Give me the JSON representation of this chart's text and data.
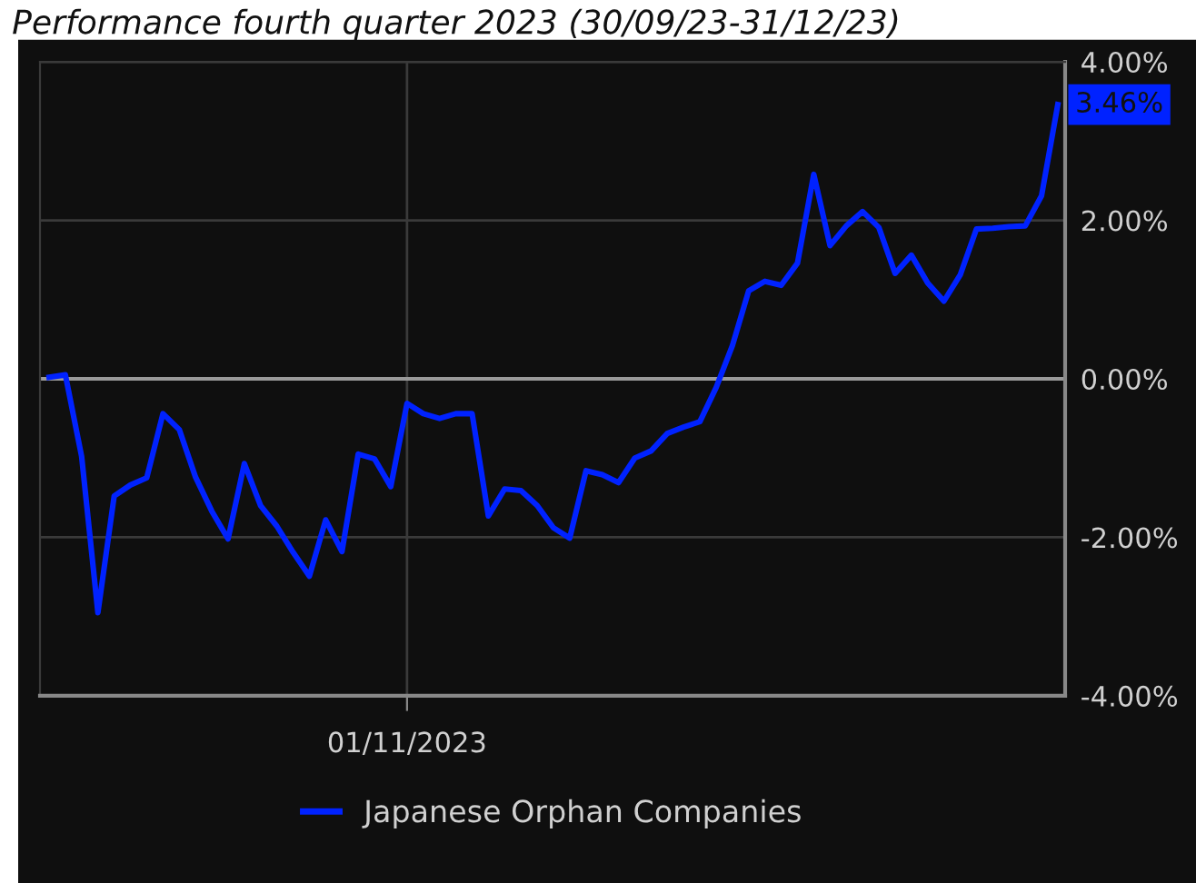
{
  "chart_data": {
    "type": "line",
    "title": "Performance fourth quarter 2023 (30/09/23-31/12/23)",
    "categories": [
      null,
      null,
      null,
      null,
      null,
      null,
      null,
      null,
      null,
      null,
      null,
      null,
      null,
      null,
      null,
      null,
      null,
      null,
      null,
      null,
      null,
      null,
      "01/11/2023",
      null,
      null,
      null,
      null,
      null,
      null,
      null,
      null,
      null,
      null,
      null,
      null,
      null,
      null,
      null,
      null,
      null,
      null,
      null,
      null,
      null,
      null,
      null,
      null,
      null,
      null,
      null,
      null,
      null,
      null,
      null,
      null,
      null,
      null,
      null,
      null,
      null,
      null,
      null,
      null
    ],
    "series": [
      {
        "name": "Japanese Orphan Companies",
        "color": "#0022ff",
        "values": [
          0.02,
          0.05,
          -0.98,
          -2.95,
          -1.48,
          -1.34,
          -1.25,
          -0.44,
          -0.64,
          -1.24,
          -1.67,
          -2.02,
          -1.07,
          -1.6,
          -1.86,
          -2.19,
          -2.49,
          -1.78,
          -2.18,
          -0.95,
          -1.01,
          -1.36,
          -0.31,
          -0.44,
          -0.5,
          -0.44,
          -0.44,
          -1.73,
          -1.39,
          -1.41,
          -1.6,
          -1.88,
          -2.01,
          -1.16,
          -1.21,
          -1.31,
          -1.0,
          -0.91,
          -0.69,
          -0.61,
          -0.54,
          -0.11,
          0.42,
          1.11,
          1.23,
          1.18,
          1.46,
          2.58,
          1.68,
          1.93,
          2.11,
          1.91,
          1.33,
          1.56,
          1.21,
          0.98,
          1.31,
          1.89,
          1.9,
          1.92,
          1.93,
          2.31,
          3.46
        ]
      }
    ],
    "ylim": [
      -4,
      4
    ],
    "yticks": [
      {
        "value": -4,
        "label": "-4.00%"
      },
      {
        "value": -2,
        "label": "-2.00%"
      },
      {
        "value": 0,
        "label": "0.00%"
      },
      {
        "value": 2,
        "label": "2.00%"
      },
      {
        "value": 4,
        "label": "4.00%"
      }
    ],
    "ref_lines": [
      {
        "axis": "y",
        "value": 0,
        "color": "#9a9a9a"
      }
    ],
    "annotations": [
      "3.46%"
    ],
    "grid": true,
    "legend": "bottom",
    "line_style": "solid",
    "marker": "none"
  }
}
